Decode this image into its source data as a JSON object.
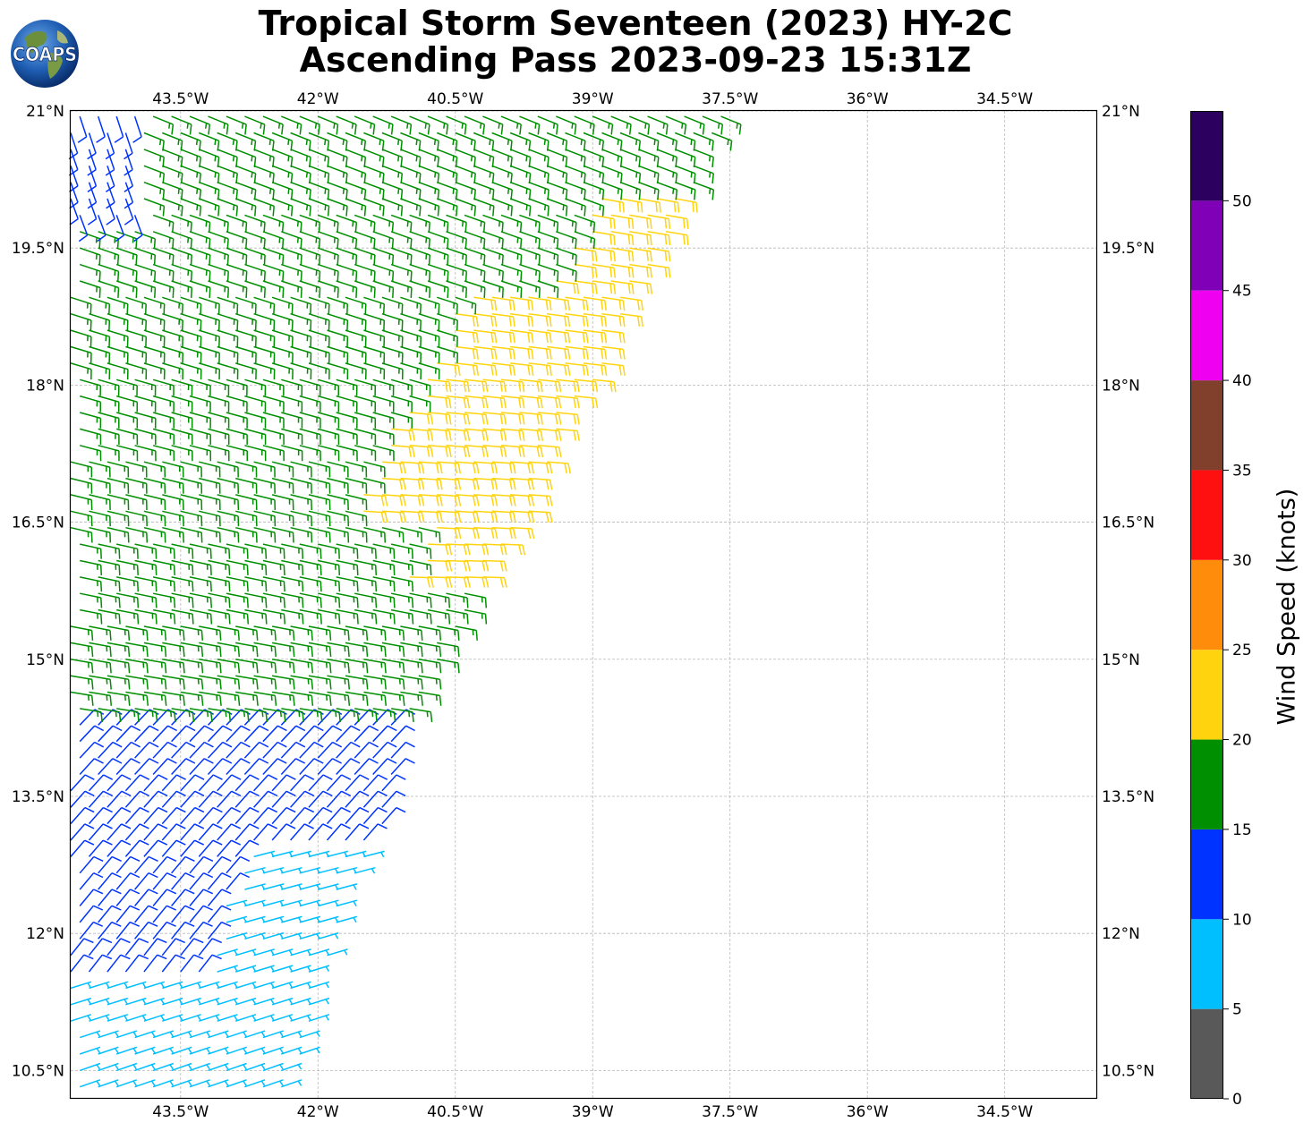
{
  "title": {
    "line1": "Tropical Storm Seventeen (2023) HY-2C",
    "line2": "Ascending Pass 2023-09-23 15:31Z"
  },
  "logo": {
    "text": "COAPS"
  },
  "map": {
    "lon_range": [
      -44.7,
      -33.5
    ],
    "lat_range": [
      10.2,
      21.0
    ],
    "lon_ticks": [
      {
        "value": -43.5,
        "label": "43.5°W"
      },
      {
        "value": -42.0,
        "label": "42°W"
      },
      {
        "value": -40.5,
        "label": "40.5°W"
      },
      {
        "value": -39.0,
        "label": "39°W"
      },
      {
        "value": -37.5,
        "label": "37.5°W"
      },
      {
        "value": -36.0,
        "label": "36°W"
      },
      {
        "value": -34.5,
        "label": "34.5°W"
      }
    ],
    "lat_ticks": [
      {
        "value": 21.0,
        "label": "21°N"
      },
      {
        "value": 19.5,
        "label": "19.5°N"
      },
      {
        "value": 18.0,
        "label": "18°N"
      },
      {
        "value": 16.5,
        "label": "16.5°N"
      },
      {
        "value": 15.0,
        "label": "15°N"
      },
      {
        "value": 13.5,
        "label": "13.5°N"
      },
      {
        "value": 12.0,
        "label": "12°N"
      },
      {
        "value": 10.5,
        "label": "10.5°N"
      }
    ],
    "gridlines": true,
    "swath": {
      "left_lon": -44.7,
      "east_edge": [
        {
          "lat": 10.3,
          "lon": -42.3
        },
        {
          "lat": 11.6,
          "lon": -41.9
        },
        {
          "lat": 12.1,
          "lon": -41.8
        },
        {
          "lat": 13.1,
          "lon": -41.3
        },
        {
          "lat": 14.3,
          "lon": -41.0
        },
        {
          "lat": 15.0,
          "lon": -40.6
        },
        {
          "lat": 15.7,
          "lon": -40.3
        },
        {
          "lat": 16.6,
          "lon": -39.7
        },
        {
          "lat": 17.4,
          "lon": -39.4
        },
        {
          "lat": 18.0,
          "lon": -39.0
        },
        {
          "lat": 19.0,
          "lon": -38.5
        },
        {
          "lat": 20.0,
          "lon": -38.0
        },
        {
          "lat": 21.0,
          "lon": -37.5
        }
      ],
      "row_spacing_deg": 0.18,
      "col_spacing_deg": 0.2
    }
  },
  "colorbar": {
    "label": "Wind Speed (knots)",
    "min": 0,
    "max": 55,
    "bins": [
      {
        "from": 0,
        "to": 5,
        "color": "#595959"
      },
      {
        "from": 5,
        "to": 10,
        "color": "#00bfff"
      },
      {
        "from": 10,
        "to": 15,
        "color": "#0033ff"
      },
      {
        "from": 15,
        "to": 20,
        "color": "#008f00"
      },
      {
        "from": 20,
        "to": 25,
        "color": "#ffd40f"
      },
      {
        "from": 25,
        "to": 30,
        "color": "#ff8c0a"
      },
      {
        "from": 30,
        "to": 35,
        "color": "#ff1010"
      },
      {
        "from": 35,
        "to": 40,
        "color": "#80402b"
      },
      {
        "from": 40,
        "to": 45,
        "color": "#f000f0"
      },
      {
        "from": 45,
        "to": 50,
        "color": "#8000b8"
      },
      {
        "from": 50,
        "to": 55,
        "color": "#2c005e"
      }
    ],
    "ticks": [
      "0",
      "5",
      "10",
      "15",
      "20",
      "25",
      "30",
      "35",
      "40",
      "45",
      "50"
    ]
  },
  "wind_regions": [
    {
      "name": "light",
      "speed_kt": 8,
      "color": "#00bfff",
      "dir_from_deg": 80,
      "note_region": "lat 10.3-13.0, east half of swath"
    },
    {
      "name": "moderate-south",
      "speed_kt": 12,
      "color": "#0033ff",
      "dir_from_deg": 45,
      "note_region": "lat 12.0-14.4"
    },
    {
      "name": "moderate-north",
      "speed_kt": 12,
      "color": "#0033ff",
      "dir_from_deg": 150,
      "note_region": "lat 19.7-21.0, west edge"
    },
    {
      "name": "fresh",
      "speed_kt": 17,
      "color": "#008f00",
      "dir_from_deg": 100,
      "note_region": "lat 14.4-21.0"
    },
    {
      "name": "strong",
      "speed_kt": 22,
      "color": "#ffd40f",
      "dir_from_deg": 90,
      "note_region": "lat 15.8-20.1, east side"
    }
  ]
}
